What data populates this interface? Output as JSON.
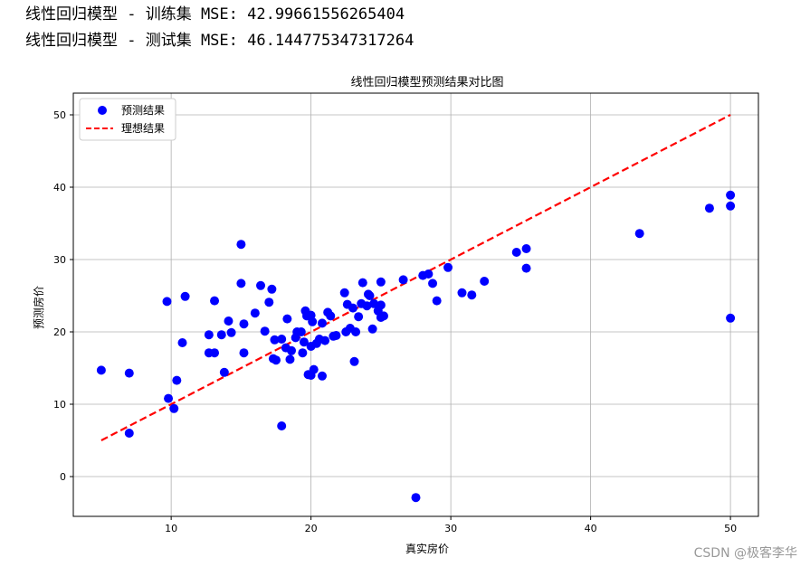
{
  "console": {
    "line1": "线性回归模型 - 训练集 MSE: 42.99661556265404",
    "line2": "线性回归模型 - 测试集 MSE: 46.144775347317264"
  },
  "watermark": "CSDN @极客李华",
  "colors": {
    "points": "#0000ff",
    "ideal": "#ff0000",
    "grid": "#b0b0b0"
  },
  "chart_data": {
    "type": "scatter",
    "title": "线性回归模型预测结果对比图",
    "xlabel": "真实房价",
    "ylabel": "预测房价",
    "xlim": [
      3,
      52
    ],
    "ylim": [
      -5.5,
      53
    ],
    "xticks": [
      10,
      20,
      30,
      40,
      50
    ],
    "yticks": [
      0,
      10,
      20,
      30,
      40,
      50
    ],
    "grid": true,
    "legend_position": "top-left",
    "legend": [
      "预测结果",
      "理想结果"
    ],
    "ideal_line": {
      "name": "理想结果",
      "x": [
        5,
        50
      ],
      "y": [
        5,
        50
      ]
    },
    "series": [
      {
        "name": "预测结果",
        "points": [
          [
            5.0,
            14.7
          ],
          [
            7.0,
            14.3
          ],
          [
            7.0,
            6.0
          ],
          [
            9.7,
            24.2
          ],
          [
            9.8,
            10.8
          ],
          [
            10.2,
            9.4
          ],
          [
            10.4,
            13.3
          ],
          [
            10.8,
            18.5
          ],
          [
            11.0,
            24.9
          ],
          [
            12.7,
            19.6
          ],
          [
            12.7,
            17.1
          ],
          [
            13.1,
            24.3
          ],
          [
            13.1,
            17.1
          ],
          [
            13.6,
            19.6
          ],
          [
            13.8,
            14.4
          ],
          [
            14.1,
            21.5
          ],
          [
            14.3,
            19.9
          ],
          [
            15.0,
            32.1
          ],
          [
            15.0,
            26.7
          ],
          [
            15.2,
            17.1
          ],
          [
            15.2,
            21.1
          ],
          [
            16.0,
            22.6
          ],
          [
            16.4,
            26.4
          ],
          [
            16.7,
            20.1
          ],
          [
            17.0,
            24.1
          ],
          [
            17.2,
            25.9
          ],
          [
            17.3,
            16.3
          ],
          [
            17.4,
            18.9
          ],
          [
            17.5,
            16.1
          ],
          [
            17.9,
            7.0
          ],
          [
            17.9,
            19.0
          ],
          [
            18.2,
            17.8
          ],
          [
            18.3,
            21.8
          ],
          [
            18.5,
            16.2
          ],
          [
            18.6,
            17.4
          ],
          [
            18.9,
            19.2
          ],
          [
            19.0,
            20.0
          ],
          [
            19.3,
            20.0
          ],
          [
            19.4,
            17.1
          ],
          [
            19.5,
            18.6
          ],
          [
            19.6,
            22.9
          ],
          [
            19.7,
            22.2
          ],
          [
            19.8,
            14.1
          ],
          [
            20.0,
            14.0
          ],
          [
            20.0,
            22.3
          ],
          [
            20.0,
            18.0
          ],
          [
            20.1,
            21.4
          ],
          [
            20.2,
            14.8
          ],
          [
            20.4,
            18.4
          ],
          [
            20.6,
            19.0
          ],
          [
            20.8,
            13.9
          ],
          [
            20.8,
            21.2
          ],
          [
            21.0,
            18.8
          ],
          [
            21.2,
            22.7
          ],
          [
            21.4,
            22.2
          ],
          [
            21.6,
            19.4
          ],
          [
            21.8,
            19.5
          ],
          [
            22.4,
            25.4
          ],
          [
            22.5,
            20.0
          ],
          [
            22.6,
            23.8
          ],
          [
            22.8,
            20.5
          ],
          [
            23.0,
            23.3
          ],
          [
            23.1,
            15.9
          ],
          [
            23.2,
            20.0
          ],
          [
            23.4,
            22.1
          ],
          [
            23.6,
            23.9
          ],
          [
            23.7,
            26.8
          ],
          [
            24.0,
            23.6
          ],
          [
            24.1,
            25.2
          ],
          [
            24.2,
            25.0
          ],
          [
            24.4,
            20.4
          ],
          [
            24.5,
            23.9
          ],
          [
            24.8,
            22.9
          ],
          [
            25.0,
            26.9
          ],
          [
            25.0,
            23.7
          ],
          [
            25.0,
            22.0
          ],
          [
            25.2,
            22.2
          ],
          [
            26.6,
            27.2
          ],
          [
            28.0,
            27.8
          ],
          [
            28.4,
            28.0
          ],
          [
            28.7,
            26.7
          ],
          [
            29.0,
            24.3
          ],
          [
            29.8,
            28.9
          ],
          [
            27.5,
            -2.9
          ],
          [
            30.8,
            25.4
          ],
          [
            31.5,
            25.1
          ],
          [
            32.4,
            27.0
          ],
          [
            34.7,
            31.0
          ],
          [
            35.4,
            31.5
          ],
          [
            35.4,
            28.8
          ],
          [
            43.5,
            33.6
          ],
          [
            48.5,
            37.1
          ],
          [
            50.0,
            38.9
          ],
          [
            50.0,
            37.4
          ],
          [
            50.0,
            21.9
          ]
        ]
      }
    ]
  }
}
